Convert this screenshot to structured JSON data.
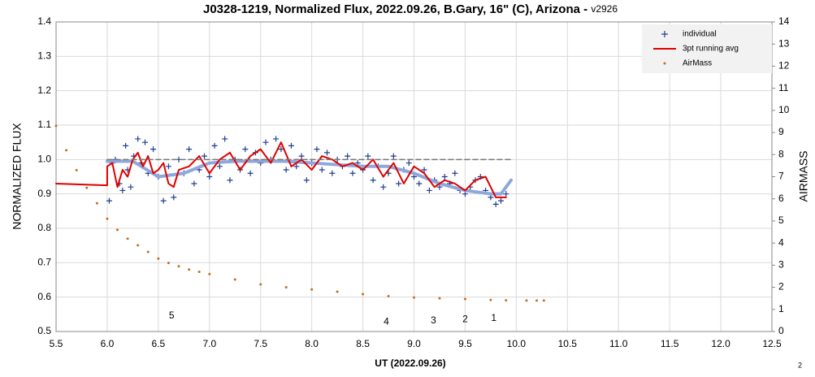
{
  "chart_data": {
    "type": "scatter",
    "title": "J0328-1219, Normalized Flux, 2022.09.26, B.Gary, 16\" (C), Arizona - ",
    "title_suffix": "v2926",
    "x_label": "UT (2022.09.26)",
    "y_label": "NORMALIZED FLUX",
    "y2_label": "AIRMASS",
    "footnote": "2",
    "xlim": [
      5.5,
      12.5
    ],
    "xticks": [
      5.5,
      {
        "value": 6.0,
        "label": "6.0"
      },
      6.5,
      {
        "value": 7.0,
        "label": "7.0"
      },
      7.5,
      {
        "value": 8.0,
        "label": "8.0"
      },
      8.5,
      {
        "value": 9.0,
        "label": "9.0"
      },
      9.5,
      {
        "value": 10.0,
        "label": "10.0"
      },
      10.5,
      {
        "value": 11.0,
        "label": "11.0"
      },
      11.5,
      {
        "value": 12.0,
        "label": "12.0"
      },
      12.5
    ],
    "ylim": [
      0.5,
      1.4
    ],
    "yticks": [
      0.5,
      0.6,
      0.7,
      0.8,
      0.9,
      {
        "value": 1.0,
        "label": "1.0"
      },
      1.1,
      1.2,
      1.3,
      1.4
    ],
    "y2lim": [
      0,
      14
    ],
    "y2ticks": [
      0,
      1,
      2,
      3,
      4,
      5,
      6,
      7,
      8,
      9,
      10,
      11,
      12,
      13,
      14
    ],
    "grid": true,
    "legend": "top-right",
    "series": [
      {
        "name": "individual",
        "color": "#1f3f8f",
        "mode": "plus",
        "x": [
          6.02,
          6.05,
          6.08,
          6.12,
          6.15,
          6.18,
          6.2,
          6.23,
          6.26,
          6.3,
          6.33,
          6.37,
          6.4,
          6.45,
          6.5,
          6.55,
          6.6,
          6.65,
          6.7,
          6.75,
          6.8,
          6.85,
          6.9,
          6.95,
          7.0,
          7.05,
          7.1,
          7.15,
          7.2,
          7.25,
          7.3,
          7.35,
          7.4,
          7.45,
          7.5,
          7.55,
          7.6,
          7.65,
          7.7,
          7.75,
          7.8,
          7.85,
          7.9,
          7.95,
          8.0,
          8.05,
          8.1,
          8.15,
          8.2,
          8.25,
          8.3,
          8.35,
          8.4,
          8.45,
          8.5,
          8.55,
          8.6,
          8.65,
          8.7,
          8.75,
          8.8,
          8.85,
          8.9,
          8.95,
          9.0,
          9.05,
          9.1,
          9.15,
          9.2,
          9.25,
          9.3,
          9.35,
          9.4,
          9.45,
          9.5,
          9.55,
          9.6,
          9.65,
          9.7,
          9.75,
          9.8,
          9.85,
          9.9
        ],
        "values": [
          0.88,
          0.99,
          1.0,
          0.93,
          0.91,
          1.04,
          0.97,
          0.92,
          1.01,
          1.06,
          0.99,
          1.05,
          0.96,
          1.03,
          0.95,
          0.88,
          0.98,
          0.89,
          1.0,
          0.96,
          1.03,
          0.93,
          0.97,
          1.01,
          0.95,
          1.04,
          0.98,
          1.06,
          0.94,
          1.0,
          0.97,
          1.03,
          0.96,
          1.02,
          0.99,
          1.05,
          1.0,
          1.06,
          1.03,
          0.97,
          1.04,
          0.98,
          1.01,
          0.94,
          0.99,
          1.03,
          0.97,
          1.02,
          0.96,
          1.0,
          0.98,
          1.01,
          0.96,
          0.99,
          0.97,
          1.01,
          0.94,
          0.98,
          0.92,
          0.96,
          1.01,
          0.93,
          0.97,
          0.99,
          0.95,
          0.93,
          0.97,
          0.91,
          0.94,
          0.92,
          0.95,
          0.93,
          0.96,
          0.91,
          0.9,
          0.92,
          0.94,
          0.95,
          0.91,
          0.89,
          0.87,
          0.88,
          0.9
        ]
      },
      {
        "color": "#8fa8dc",
        "mode": "line",
        "width": 4,
        "x": [
          6.0,
          6.25,
          6.5,
          6.75,
          7.0,
          7.25,
          7.5,
          7.75,
          8.0,
          8.25,
          8.5,
          8.75,
          9.0,
          9.25,
          9.5,
          9.75,
          9.85,
          9.95
        ],
        "values": [
          0.995,
          0.995,
          0.95,
          0.96,
          0.99,
          0.995,
          0.995,
          0.995,
          0.99,
          0.985,
          0.98,
          0.98,
          0.96,
          0.93,
          0.91,
          0.9,
          0.9,
          0.94
        ]
      },
      {
        "name": "3pt running avg",
        "color": "#e00000",
        "mode": "line",
        "width": 2,
        "x": [
          5.5,
          6.0,
          6.0,
          6.05,
          6.1,
          6.15,
          6.2,
          6.25,
          6.3,
          6.35,
          6.4,
          6.45,
          6.5,
          6.55,
          6.6,
          6.65,
          6.7,
          6.8,
          6.9,
          7.0,
          7.1,
          7.2,
          7.3,
          7.4,
          7.5,
          7.6,
          7.7,
          7.8,
          7.9,
          8.0,
          8.1,
          8.2,
          8.3,
          8.4,
          8.5,
          8.6,
          8.7,
          8.8,
          8.9,
          9.0,
          9.1,
          9.2,
          9.3,
          9.4,
          9.5,
          9.6,
          9.7,
          9.8,
          9.9
        ],
        "values": [
          0.93,
          0.925,
          0.98,
          0.99,
          0.92,
          0.97,
          0.95,
          1.0,
          1.02,
          0.98,
          1.01,
          0.96,
          0.97,
          0.99,
          0.93,
          0.92,
          0.97,
          0.98,
          1.01,
          0.96,
          1.0,
          1.02,
          0.97,
          1.01,
          1.03,
          0.99,
          1.05,
          0.98,
          1.0,
          0.97,
          1.01,
          1.0,
          0.98,
          0.99,
          0.97,
          1.0,
          0.95,
          0.99,
          0.93,
          0.98,
          0.96,
          0.92,
          0.94,
          0.93,
          0.91,
          0.94,
          0.95,
          0.89,
          0.89
        ]
      },
      {
        "color": "#777777",
        "mode": "dash",
        "x": [
          6.0,
          9.95
        ],
        "values": [
          1.0,
          1.0
        ]
      },
      {
        "name": "AirMass",
        "color": "#c07020",
        "mode": "dot",
        "axis": "y2",
        "x": [
          5.5,
          5.6,
          5.7,
          5.8,
          5.9,
          6.0,
          6.1,
          6.2,
          6.3,
          6.4,
          6.5,
          6.6,
          6.7,
          6.8,
          6.9,
          7.0,
          7.25,
          7.5,
          7.75,
          8.0,
          8.25,
          8.5,
          8.75,
          9.0,
          9.25,
          9.5,
          9.75,
          9.9,
          10.1,
          10.2,
          10.27
        ],
        "values": [
          9.3,
          8.2,
          7.3,
          6.5,
          5.8,
          5.1,
          4.6,
          4.2,
          3.9,
          3.6,
          3.3,
          3.1,
          2.95,
          2.8,
          2.7,
          2.6,
          2.35,
          2.13,
          2.0,
          1.9,
          1.8,
          1.69,
          1.6,
          1.54,
          1.5,
          1.47,
          1.43,
          1.41,
          1.4,
          1.4,
          1.4
        ]
      }
    ],
    "annotations": [
      {
        "text": "5",
        "x": 6.63,
        "y": 0.545
      },
      {
        "text": "4",
        "x": 8.73,
        "y": 0.528
      },
      {
        "text": "3",
        "x": 9.19,
        "y": 0.531
      },
      {
        "text": "2",
        "x": 9.5,
        "y": 0.535
      },
      {
        "text": "1",
        "x": 9.78,
        "y": 0.538
      }
    ]
  }
}
